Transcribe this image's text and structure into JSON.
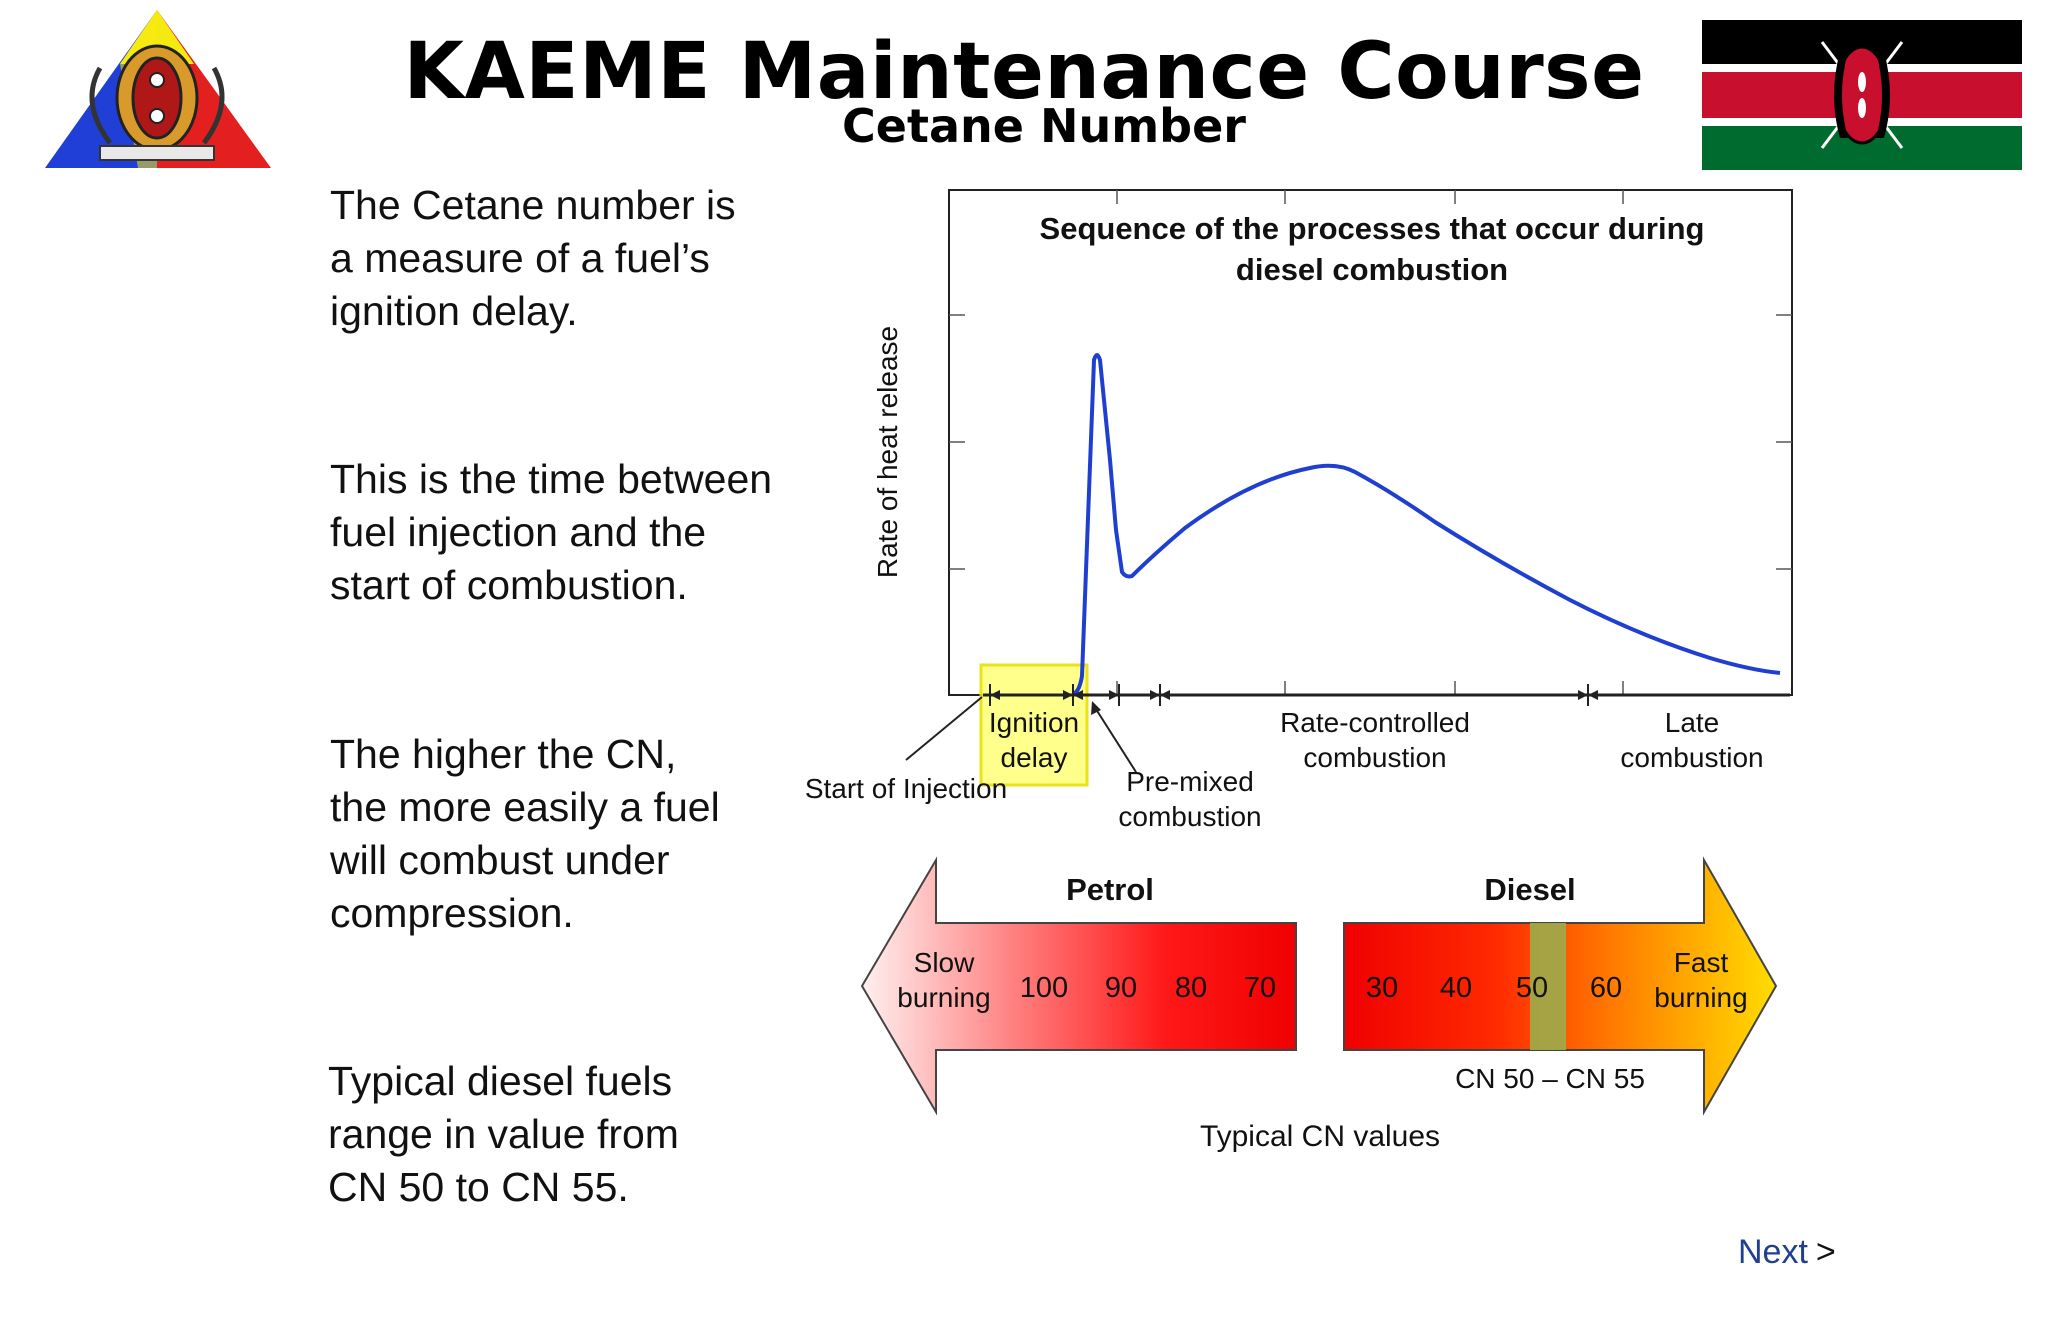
{
  "header": {
    "title": "KAEME Maintenance Course",
    "subtitle": "Cetane Number"
  },
  "paragraphs": [
    {
      "lines": [
        "The Cetane number is",
        "a measure of a fuel’s",
        "ignition delay."
      ]
    },
    {
      "lines": [
        "This is the time between",
        "fuel injection and the",
        "start of combustion."
      ]
    },
    {
      "lines": [
        "The higher the CN,",
        "the more easily a fuel",
        "will combust under",
        "compression."
      ]
    },
    {
      "lines": [
        "Typical diesel fuels",
        "range in value from",
        "CN 50 to CN 55."
      ]
    }
  ],
  "diagram": {
    "title_lines": [
      "Sequence of the processes that occur during",
      "diesel combustion"
    ],
    "ylabel": "Rate of heat release",
    "phases": {
      "ignition_delay": [
        "Ignition",
        "delay"
      ],
      "start_of_injection": "Start of Injection",
      "premixed": [
        "Pre-mixed",
        "combustion"
      ],
      "rate_controlled": [
        "Rate-controlled",
        "combustion"
      ],
      "late": [
        "Late",
        "combustion"
      ]
    },
    "curve_color": "#1f3fd0",
    "highlight_color": "#ffff80"
  },
  "cn_scale": {
    "petrol_label": "Petrol",
    "diesel_label": "Diesel",
    "left_end": [
      "Slow",
      "burning"
    ],
    "right_end": [
      "Fast",
      "burning"
    ],
    "petrol_values": [
      "100",
      "90",
      "80",
      "70"
    ],
    "diesel_values": [
      "30",
      "40",
      "50",
      "60"
    ],
    "range_label": "CN 50 – CN 55",
    "caption": "Typical CN values",
    "range_color": "#a0a848"
  },
  "nav": {
    "next_label": "Next",
    "next_arrow": ">"
  },
  "flag": {
    "colors": {
      "black": "#000000",
      "red": "#c8102e",
      "green": "#006b2e",
      "white": "#ffffff"
    }
  }
}
